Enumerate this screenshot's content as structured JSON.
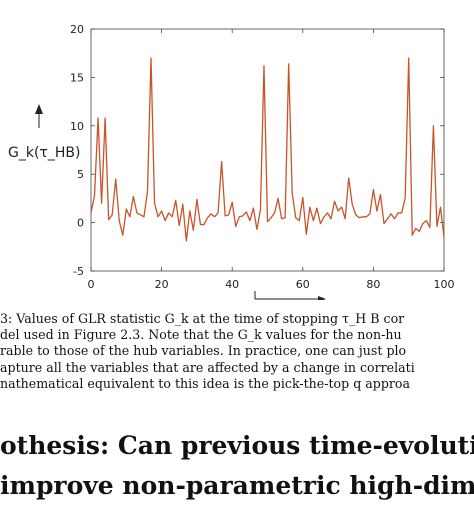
{
  "chart_data": {
    "type": "line",
    "title": "",
    "ylabel": "G_k(τ_HB)",
    "xlabel": "",
    "xlim": [
      0,
      100
    ],
    "ylim": [
      -5,
      20
    ],
    "x_ticks": [
      0,
      20,
      40,
      60,
      80,
      100
    ],
    "y_ticks": [
      -5,
      0,
      5,
      10,
      15,
      20
    ],
    "grid": false,
    "line_color": "#c8542a",
    "series": [
      {
        "values": [
          1.0,
          2.8,
          10.8,
          2.0,
          10.8,
          0.3,
          0.8,
          4.5,
          0.2,
          -1.3,
          1.4,
          0.6,
          2.7,
          1.0,
          0.8,
          0.6,
          3.2,
          17.0,
          2.0,
          0.6,
          1.2,
          0.2,
          1.0,
          0.6,
          2.3,
          -0.3,
          1.9,
          -1.9,
          1.2,
          -0.8,
          2.4,
          -0.2,
          -0.2,
          0.5,
          0.9,
          0.6,
          1.0,
          6.3,
          0.7,
          0.8,
          2.1,
          -0.4,
          0.6,
          0.7,
          1.1,
          0.2,
          1.5,
          -0.7,
          1.3,
          16.2,
          0.1,
          0.5,
          1.0,
          2.5,
          0.4,
          0.5,
          16.4,
          3.0,
          0.5,
          0.2,
          2.6,
          -1.2,
          1.6,
          0.2,
          1.5,
          -0.1,
          0.6,
          1.0,
          0.4,
          2.2,
          1.2,
          1.6,
          0.4,
          4.6,
          1.9,
          0.8,
          0.5,
          0.6,
          0.6,
          0.9,
          3.4,
          1.2,
          2.9,
          -0.1,
          0.4,
          0.9,
          0.4,
          1.0,
          1.0,
          2.5,
          17.0,
          -1.3,
          -0.6,
          -0.9,
          -0.1,
          0.2,
          -0.5,
          10.0,
          -0.4,
          1.6,
          -1.5
        ]
      }
    ]
  },
  "caption_lines": [
    "3: Values of GLR statistic G_k at the time of stopping τ_H B cor",
    "del used in Figure 2.3. Note that the G_k values for the non-hu",
    "rable to those of the hub variables. In practice, one can just plo",
    "apture all the variables that are affected by a change in correlati",
    "nathematical equivalent to this idea is the pick-the-top q approa"
  ],
  "heading_lines": [
    "othesis: Can previous time-evolution o",
    "improve non-parametric high-dimension"
  ]
}
